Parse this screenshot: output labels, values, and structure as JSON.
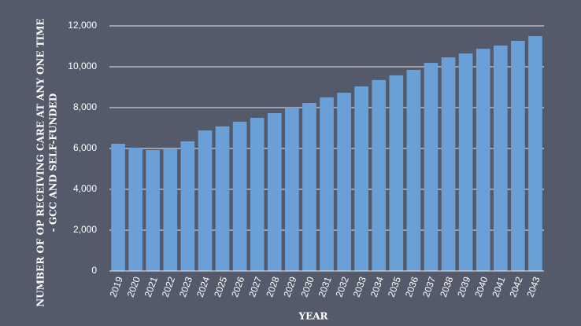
{
  "chart_data": {
    "type": "bar",
    "y_label": [
      "NUMBER OF OP RECEIVING CARE AT ANY ONE TIME",
      "- GCC AND SELF-FUNDED"
    ],
    "x_label": "YEAR",
    "categories": [
      "2019",
      "2020",
      "2021",
      "2022",
      "2023",
      "2024",
      "2025",
      "2026",
      "2027",
      "2028",
      "2029",
      "2030",
      "2031",
      "2032",
      "2033",
      "2034",
      "2035",
      "2036",
      "2037",
      "2038",
      "2039",
      "2040",
      "2041",
      "2042",
      "2043"
    ],
    "values": [
      6230,
      6040,
      5920,
      5960,
      6350,
      6880,
      7080,
      7310,
      7500,
      7730,
      8000,
      8230,
      8500,
      8730,
      9040,
      9350,
      9580,
      9850,
      10190,
      10460,
      10650,
      10880,
      11040,
      11270,
      11500
    ],
    "color": "#6a9fd8",
    "ylim": [
      0,
      12000
    ],
    "yticks": [
      0,
      {
        "value": 2000,
        "label": "2,000"
      },
      {
        "value": 4000,
        "label": "4,000"
      },
      {
        "value": 6000,
        "label": "6,000"
      },
      {
        "value": 8000,
        "label": "8,000"
      },
      {
        "value": 10000,
        "label": "10,000"
      },
      {
        "value": 12000,
        "label": "12,000"
      }
    ],
    "grid": true
  }
}
